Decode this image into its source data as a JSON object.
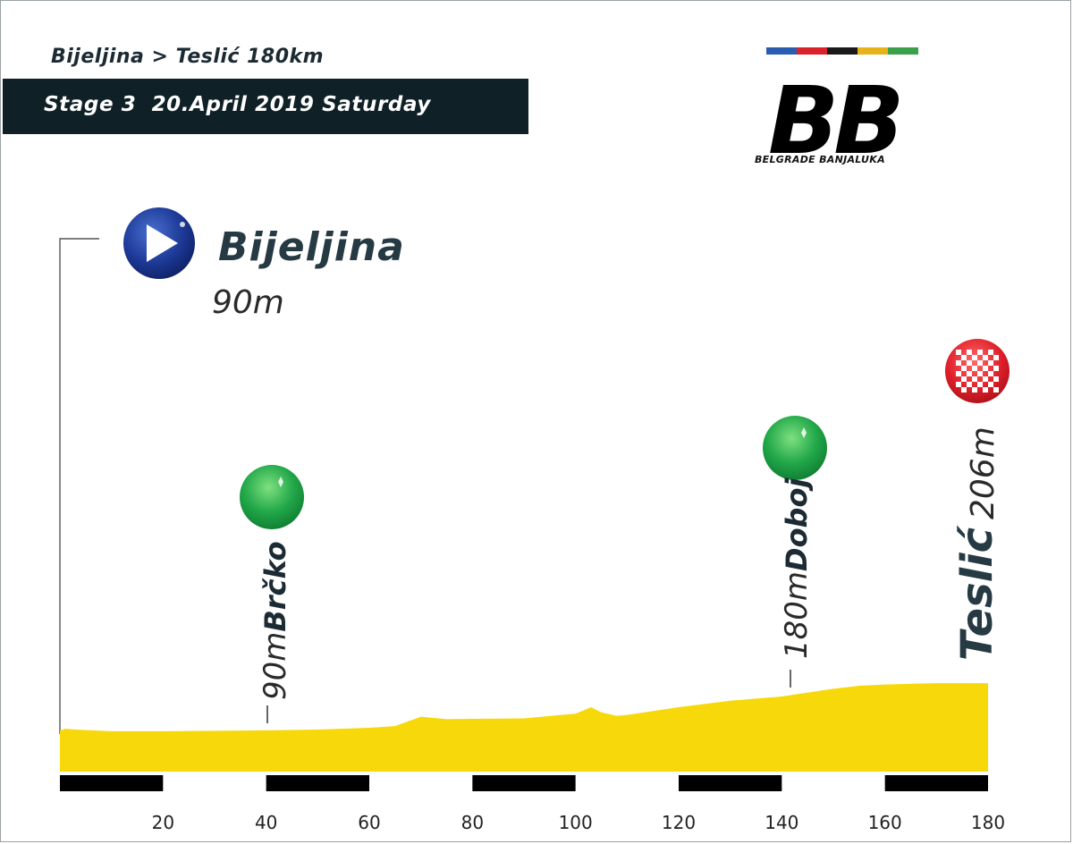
{
  "header": {
    "route": "Bijeljina > Teslić 180km",
    "stage": "Stage 3  20.April 2019 Saturday"
  },
  "logo": {
    "caption": "BELGRADE BANJALUKA",
    "letters": "BB",
    "stripe_colors": [
      "#2a5db0",
      "#d8232a",
      "#1a1a1a",
      "#e8b21a",
      "#3aa04a"
    ]
  },
  "start": {
    "city": "Bijeljina",
    "altitude": "90m",
    "icon": "start-play-icon",
    "color": "#1f3f9a"
  },
  "finish": {
    "city": "Teslić",
    "altitude": "206m",
    "icon": "finish-checkered-icon",
    "color": "#e0202a"
  },
  "waypoints": [
    {
      "name": "Brčko",
      "altitude": "90m",
      "km": 40,
      "icon": "sprint-green-icon"
    },
    {
      "name": "Doboj",
      "altitude": "180m",
      "km": 140,
      "icon": "sprint-green-icon"
    }
  ],
  "chart_data": {
    "type": "area",
    "title": "Bijeljina > Teslić 180km",
    "xlabel": "",
    "ylabel": "",
    "x_ticks": [
      20,
      40,
      60,
      80,
      100,
      120,
      140,
      160,
      180
    ],
    "xlim": [
      0,
      180
    ],
    "ylim": [
      0,
      380
    ],
    "fill_color": "#f7d80a",
    "series": [
      {
        "x": [
          0,
          1,
          3,
          10,
          20,
          30,
          40,
          50,
          60,
          65,
          70,
          75,
          80,
          90,
          100,
          103,
          105,
          108,
          110,
          120,
          130,
          140,
          150,
          155,
          160,
          170,
          175,
          180
        ],
        "y": [
          95,
          100,
          98,
          94,
          94,
          95,
          96,
          98,
          102,
          106,
          128,
          122,
          123,
          124,
          135,
          150,
          138,
          130,
          132,
          150,
          165,
          175,
          193,
          200,
          203,
          206,
          206,
          206
        ]
      }
    ]
  }
}
